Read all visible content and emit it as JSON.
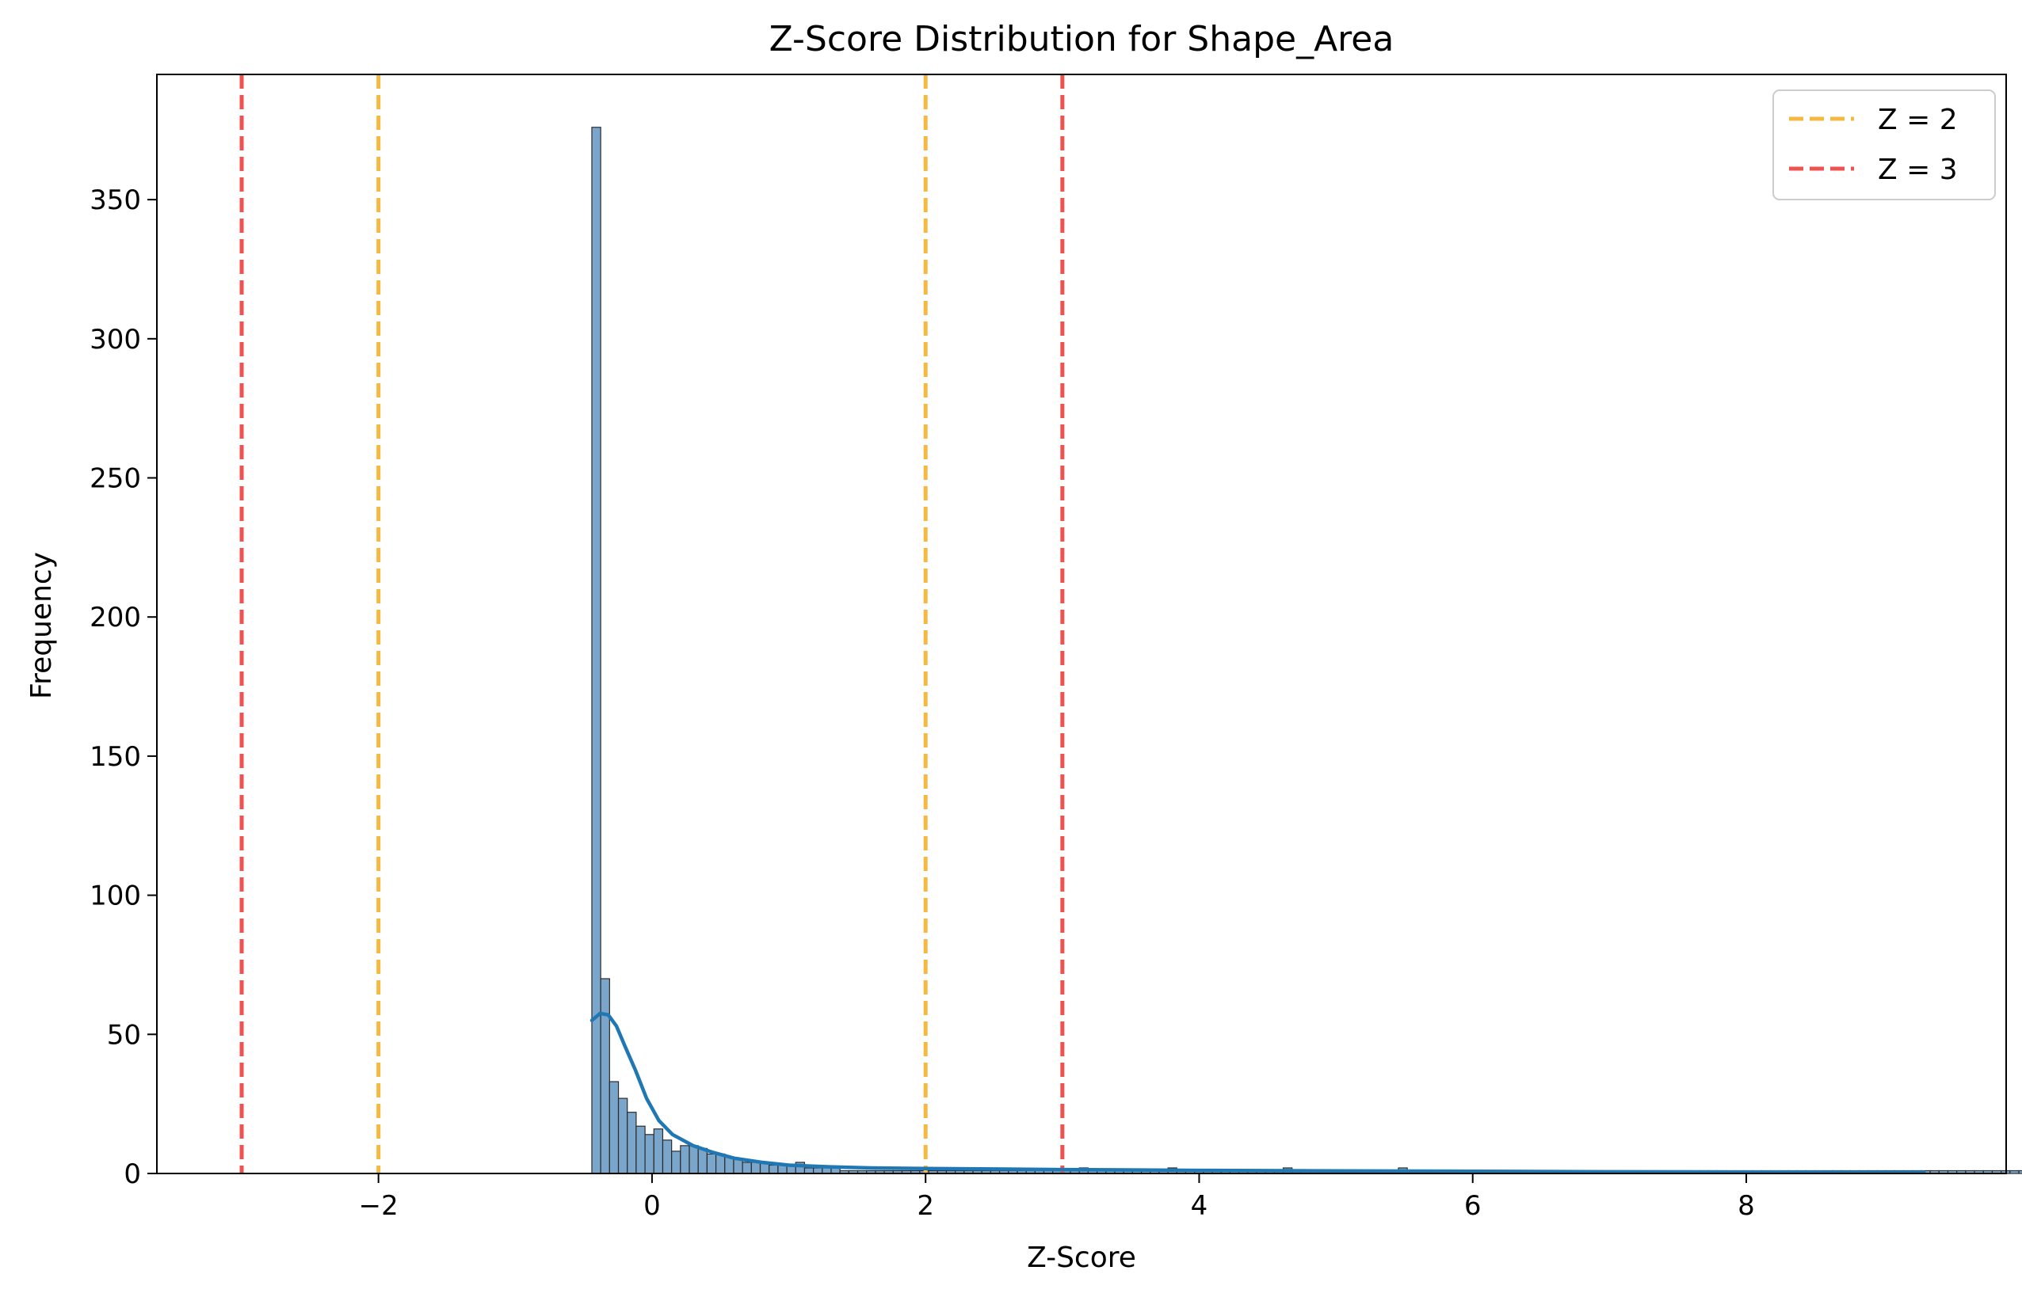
{
  "chart_data": {
    "type": "histogram",
    "title": "Z-Score Distribution for Shape_Area",
    "xlabel": "Z-Score",
    "ylabel": "Frequency",
    "xlim": [
      -3.62,
      9.9
    ],
    "ylim": [
      0,
      395
    ],
    "xticks": [
      -2,
      0,
      2,
      4,
      6,
      8
    ],
    "yticks": [
      0,
      50,
      100,
      150,
      200,
      250,
      300,
      350
    ],
    "grid": false,
    "legend": {
      "position": "top-right",
      "entries": [
        {
          "label": "Z = 2",
          "color": "#f5b942"
        },
        {
          "label": "Z = 3",
          "color": "#ef5350"
        }
      ]
    },
    "threshold_lines": [
      {
        "x": -3,
        "color": "#ef5350",
        "legend": "Z = 3"
      },
      {
        "x": -2,
        "color": "#f5b942",
        "legend": "Z = 2"
      },
      {
        "x": 2,
        "color": "#f5b942",
        "legend": "Z = 2"
      },
      {
        "x": 3,
        "color": "#ef5350",
        "legend": "Z = 3"
      }
    ],
    "bar_color": "#7aa6cb",
    "bar_edge_color": "#2b2b2b",
    "kde_color": "#1f77b4",
    "bins": {
      "start": -0.44,
      "width": 0.0648,
      "counts": [
        376,
        70,
        33,
        27,
        22,
        17,
        14,
        16,
        12,
        8,
        10,
        10,
        9,
        7,
        7,
        6,
        5,
        4,
        4,
        4,
        3,
        3,
        3,
        4,
        2,
        2,
        2,
        2,
        1,
        1,
        1,
        1,
        1,
        1,
        1,
        1,
        1,
        1,
        1,
        1,
        1,
        1,
        1,
        1,
        1,
        1,
        1,
        1,
        1,
        1,
        1,
        1,
        1,
        1,
        1,
        2,
        1,
        1,
        1,
        1,
        1,
        1,
        1,
        1,
        1,
        2,
        1,
        1,
        1,
        1,
        1,
        1,
        1,
        1,
        1,
        1,
        1,
        1,
        2,
        1,
        1,
        1,
        1,
        1,
        1,
        1,
        1,
        1,
        1,
        1,
        1,
        2,
        1,
        1,
        1,
        1,
        1,
        1,
        1,
        1,
        1,
        1,
        1,
        1,
        1,
        1,
        1,
        1,
        1,
        1,
        1,
        1,
        1,
        1,
        1,
        1,
        1,
        1,
        1,
        1,
        1,
        1,
        1,
        1,
        1,
        1,
        1,
        1,
        1,
        1,
        1,
        1,
        1,
        1,
        1,
        1,
        1,
        1,
        1,
        1,
        1,
        1,
        1,
        1,
        1,
        1,
        1,
        1,
        1,
        1,
        1,
        1,
        1,
        1,
        1,
        1,
        1,
        1,
        1,
        1,
        1,
        1,
        1,
        1,
        1,
        1,
        1,
        1,
        1,
        1,
        1,
        1,
        1,
        1,
        1,
        1,
        1,
        1,
        1,
        1,
        1,
        1,
        1,
        1,
        1,
        1,
        1,
        1,
        1,
        1,
        1,
        1,
        1,
        1,
        1
      ]
    },
    "kde": {
      "x": [
        -0.44,
        -0.38,
        -0.32,
        -0.26,
        -0.2,
        -0.12,
        -0.04,
        0.05,
        0.15,
        0.3,
        0.45,
        0.6,
        0.8,
        1.0,
        1.3,
        1.6,
        2.0,
        2.5,
        3.0,
        4.0,
        5.0,
        6.0,
        7.0,
        8.0,
        9.0,
        9.3
      ],
      "y": [
        55,
        57.5,
        57,
        53,
        46,
        37,
        27,
        19,
        14,
        10,
        7.5,
        5.5,
        4,
        3,
        2.4,
        2,
        1.8,
        1.6,
        1.4,
        1.1,
        0.9,
        0.8,
        0.6,
        0.5,
        0.4,
        0.4
      ]
    }
  }
}
